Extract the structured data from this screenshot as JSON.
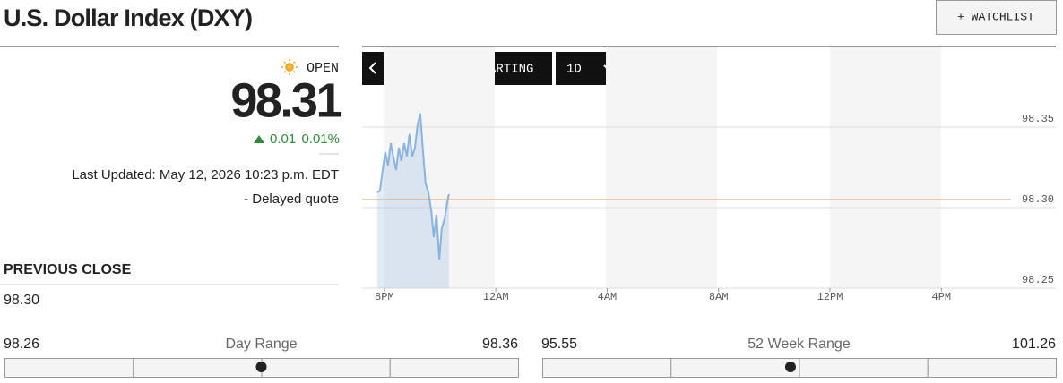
{
  "header": {
    "title": "U.S. Dollar Index (DXY)",
    "watchlist": "+ WATCHLIST"
  },
  "quote": {
    "status": "OPEN",
    "price": 98.31,
    "change": 0.01,
    "change_percent": "0.01%",
    "last_updated": "Last Updated: May 12, 2026 10:23 p.m. EDT",
    "delayed": "- Delayed quote"
  },
  "previous_close": {
    "label": "PREVIOUS CLOSE",
    "value": "98.30"
  },
  "ranges": [
    {
      "low": 98.26,
      "label": "Day Range",
      "high": 98.36
    },
    {
      "low": 95.55,
      "label": "52 Week Range",
      "high": 101.26
    }
  ],
  "toolbar": {
    "advanced": "ADVANCED CHARTING",
    "period": "1D",
    "dollar": "$",
    "percent": "%"
  },
  "chart_data": {
    "type": "line",
    "x": [
      19.74,
      19.84,
      19.94,
      20.03,
      20.13,
      20.23,
      20.32,
      20.42,
      20.52,
      20.61,
      20.71,
      20.81,
      20.9,
      21.0,
      21.1,
      21.19,
      21.29,
      21.39,
      21.48,
      21.58,
      21.68,
      21.77,
      21.87,
      21.97,
      22.06,
      22.16,
      22.26,
      22.32
    ],
    "values": [
      98.3094,
      98.3106,
      98.3233,
      98.3344,
      98.3261,
      98.34,
      98.3317,
      98.3233,
      98.3372,
      98.3289,
      98.34,
      98.3317,
      98.3456,
      98.3317,
      98.3372,
      98.3511,
      98.3583,
      98.3344,
      98.315,
      98.3094,
      98.2983,
      98.2817,
      98.2956,
      98.2678,
      98.2872,
      98.2928,
      98.3039,
      98.3083
    ],
    "color": "#8ab4e0",
    "xlim": [
      19.2,
      42.5
    ],
    "xticks": [
      {
        "value": 20,
        "label": "8PM"
      },
      {
        "value": 24,
        "label": "12AM"
      },
      {
        "value": 28,
        "label": "4AM"
      },
      {
        "value": 32,
        "label": "8AM"
      },
      {
        "value": 36,
        "label": "12PM"
      },
      {
        "value": 40,
        "label": "4PM"
      }
    ],
    "ylim": [
      98.25,
      98.3733
    ],
    "yticks": [
      98.25,
      {
        "value": 98.3,
        "label": "98.30"
      },
      98.35
    ],
    "reference_line": 98.305,
    "reference_color": "#e8964c",
    "grid": true
  }
}
